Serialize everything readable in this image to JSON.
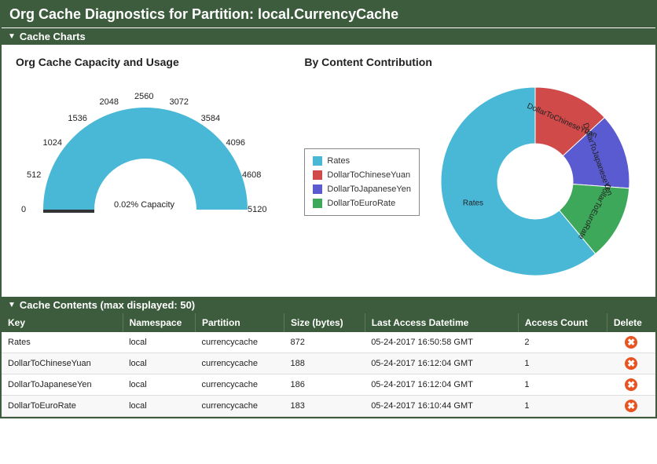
{
  "title": "Org Cache Diagnostics for Partition: local.CurrencyCache",
  "section_charts": "Cache Charts",
  "section_contents": "Cache Contents (max displayed: 50)",
  "gauge": {
    "title": "Org Cache Capacity and Usage",
    "center_label": "0.02% Capacity",
    "min": 0,
    "max": 5120,
    "step": 512,
    "ticks": [
      "0",
      "512",
      "1024",
      "1536",
      "2048",
      "2560",
      "3072",
      "3584",
      "4096",
      "4608",
      "5120"
    ],
    "fill_color": "#49b8d6",
    "track_color": "#333333",
    "bg_color": "#ffffff",
    "tick_font_size": 11
  },
  "donut": {
    "title": "By Content Contribution",
    "hole_ratio": 0.4,
    "bg_color": "#ffffff",
    "slices": [
      {
        "label": "Rates",
        "value": 872,
        "color": "#49b8d6"
      },
      {
        "label": "DollarToChineseYuan",
        "value": 188,
        "color": "#d14a4a"
      },
      {
        "label": "DollarToJapaneseYen",
        "value": 186,
        "color": "#5a5ad1"
      },
      {
        "label": "DollarToEuroRate",
        "value": 183,
        "color": "#3da85a"
      }
    ],
    "legend_border": "#888888",
    "label_font_size": 10
  },
  "table": {
    "headers": [
      "Key",
      "Namespace",
      "Partition",
      "Size (bytes)",
      "Last Access Datetime",
      "Access Count",
      "Delete"
    ],
    "col_widths": [
      "150px",
      "90px",
      "110px",
      "100px",
      "190px",
      "110px",
      "60px"
    ],
    "rows": [
      {
        "key": "Rates",
        "ns": "local",
        "part": "currencycache",
        "size": "872",
        "last": "05-24-2017 16:50:58 GMT",
        "count": "2"
      },
      {
        "key": "DollarToChineseYuan",
        "ns": "local",
        "part": "currencycache",
        "size": "188",
        "last": "05-24-2017 16:12:04 GMT",
        "count": "1"
      },
      {
        "key": "DollarToJapaneseYen",
        "ns": "local",
        "part": "currencycache",
        "size": "186",
        "last": "05-24-2017 16:12:04 GMT",
        "count": "1"
      },
      {
        "key": "DollarToEuroRate",
        "ns": "local",
        "part": "currencycache",
        "size": "183",
        "last": "05-24-2017 16:10:44 GMT",
        "count": "1"
      }
    ],
    "header_bg": "#3d5c3d",
    "row_alt_bg": "#f8f8f8",
    "delete_icon_bg": "#e8531f",
    "delete_icon_fg": "#ffffff"
  },
  "colors": {
    "panel_green": "#3d5c3d",
    "white": "#ffffff"
  }
}
